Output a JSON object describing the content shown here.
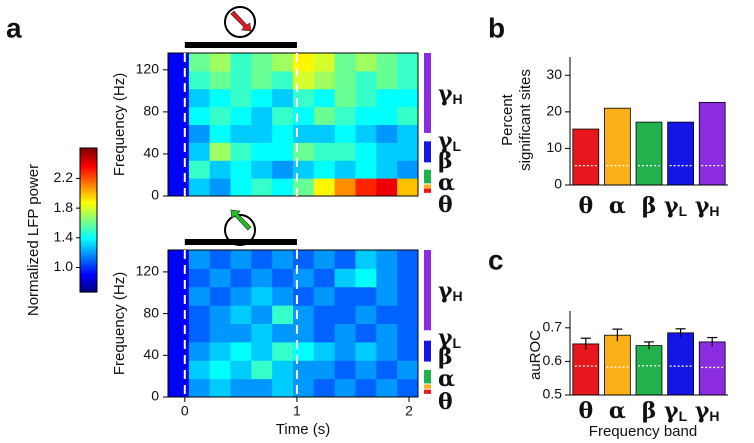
{
  "chart_data": [
    {
      "type": "heatmap",
      "label": "a",
      "ylabel": "Frequency (Hz)",
      "xlim": [
        -0.15,
        2.08
      ],
      "ylim": [
        0,
        136
      ],
      "yticks": [
        0,
        40,
        80,
        120
      ],
      "colormap": "jet",
      "stimulus": [
        0,
        1
      ],
      "stimulus_arrow_color": "#e8171d",
      "z": [
        [
          0.9,
          1.3,
          1.2,
          1.4,
          1.5,
          1.4,
          1.6,
          1.9,
          2.1,
          2.3,
          2.4,
          2.0
        ],
        [
          0.9,
          1.5,
          1.3,
          1.4,
          1.3,
          1.2,
          1.3,
          1.4,
          1.3,
          1.4,
          1.3,
          1.2
        ],
        [
          0.9,
          1.3,
          1.7,
          1.5,
          1.4,
          1.4,
          1.6,
          1.5,
          1.5,
          1.4,
          1.3,
          1.3
        ],
        [
          0.9,
          1.2,
          1.4,
          1.3,
          1.3,
          1.4,
          1.3,
          1.3,
          1.4,
          1.3,
          1.2,
          1.3
        ],
        [
          0.9,
          1.4,
          1.5,
          1.4,
          1.3,
          1.5,
          1.4,
          1.6,
          1.5,
          1.4,
          1.4,
          1.5
        ],
        [
          0.9,
          1.3,
          1.4,
          1.5,
          1.4,
          1.3,
          1.5,
          1.4,
          1.6,
          1.5,
          1.4,
          1.4
        ],
        [
          0.9,
          1.5,
          1.6,
          1.5,
          1.6,
          1.5,
          1.8,
          1.7,
          1.6,
          1.5,
          1.6,
          1.5
        ],
        [
          0.9,
          1.6,
          1.7,
          1.5,
          1.6,
          1.7,
          1.9,
          1.8,
          1.6,
          1.7,
          1.6,
          1.5
        ]
      ],
      "bands": [
        {
          "name": "γH",
          "range": [
            60,
            136
          ],
          "color": "#8b2be2"
        },
        {
          "name": "γL",
          "range": [
            32,
            52
          ],
          "color": "#1515e6"
        },
        {
          "name": "β",
          "range": [
            12,
            25
          ],
          "color": "#22b14c"
        },
        {
          "name": "α",
          "range": [
            7,
            11
          ],
          "color": "#fbb01a"
        },
        {
          "name": "θ",
          "range": [
            3,
            7
          ],
          "color": "#e8171d"
        }
      ]
    },
    {
      "type": "heatmap",
      "ylabel": "Frequency (Hz)",
      "xlabel": "Time (s)",
      "xlim": [
        -0.15,
        2.08
      ],
      "ylim": [
        0,
        141
      ],
      "yticks": [
        0,
        40,
        80,
        120
      ],
      "xticks": [
        0,
        1,
        2
      ],
      "colormap": "jet",
      "stimulus": [
        0,
        1
      ],
      "stimulus_arrow_color": "#22c01e",
      "z": [
        [
          0.9,
          1.2,
          1.3,
          1.2,
          1.2,
          1.3,
          1.2,
          1.1,
          1.2,
          1.1,
          1.2,
          1.1
        ],
        [
          0.9,
          1.3,
          1.4,
          1.3,
          1.5,
          1.3,
          1.2,
          1.2,
          1.1,
          1.2,
          1.1,
          1.2
        ],
        [
          0.9,
          1.2,
          1.3,
          1.4,
          1.3,
          1.5,
          1.4,
          1.3,
          1.2,
          1.3,
          1.2,
          1.1
        ],
        [
          0.9,
          1.1,
          1.2,
          1.2,
          1.3,
          1.2,
          1.2,
          1.1,
          1.2,
          1.1,
          1.2,
          1.1
        ],
        [
          0.9,
          1.1,
          1.2,
          1.3,
          1.2,
          1.5,
          1.2,
          1.1,
          1.1,
          1.2,
          1.1,
          1.1
        ],
        [
          0.9,
          1.2,
          1.1,
          1.2,
          1.3,
          1.2,
          1.1,
          1.2,
          1.1,
          1.1,
          1.2,
          1.1
        ],
        [
          0.9,
          1.1,
          1.2,
          1.1,
          1.2,
          1.1,
          1.2,
          1.1,
          1.3,
          1.4,
          1.2,
          1.1
        ],
        [
          0.9,
          1.2,
          1.1,
          1.2,
          1.1,
          1.2,
          1.1,
          1.2,
          1.1,
          1.3,
          1.2,
          1.1
        ]
      ],
      "bands": [
        {
          "name": "γH",
          "range": [
            64,
            141
          ],
          "color": "#8b2be2"
        },
        {
          "name": "γL",
          "range": [
            34,
            54
          ],
          "color": "#1515e6"
        },
        {
          "name": "β",
          "range": [
            13,
            26
          ],
          "color": "#22b14c"
        },
        {
          "name": "α",
          "range": [
            8,
            12
          ],
          "color": "#fbb01a"
        },
        {
          "name": "θ",
          "range": [
            3,
            7
          ],
          "color": "#e8171d"
        }
      ]
    },
    {
      "type": "colorbar",
      "label": "Normalized LFP power",
      "colormap": "jet",
      "ylim": [
        0.67,
        2.61
      ],
      "yticks": [
        {
          "value": 1.0,
          "label": "1.0"
        },
        1.4,
        1.8,
        2.2
      ]
    },
    {
      "type": "bar",
      "label": "b",
      "ylabel": [
        "Percent",
        "significant sites"
      ],
      "categories": [
        "θ",
        "α",
        "β",
        "γL",
        "γH"
      ],
      "colors": [
        "#e8171d",
        "#fbb01a",
        "#22b14c",
        "#1515e6",
        "#8b2be2"
      ],
      "values": [
        15.3,
        21,
        17.2,
        17.2,
        22.6
      ],
      "chance_values": [
        5.3,
        5.3,
        5.3,
        5.3,
        5.3
      ],
      "ylim": [
        0,
        35
      ],
      "yticks": [
        0,
        10,
        20,
        30
      ]
    },
    {
      "type": "bar",
      "label": "c",
      "ylabel": [
        "auROC"
      ],
      "xlabel": "Frequency band",
      "categories": [
        "θ",
        "α",
        "β",
        "γL",
        "γH"
      ],
      "colors": [
        "#e8171d",
        "#fbb01a",
        "#22b14c",
        "#1515e6",
        "#8b2be2"
      ],
      "values": [
        0.652,
        0.678,
        0.647,
        0.685,
        0.658
      ],
      "errors": [
        0.017,
        0.018,
        0.011,
        0.012,
        0.013
      ],
      "chance_values": [
        0.586,
        0.583,
        0.587,
        0.586,
        0.582
      ],
      "ylim": [
        0.5,
        0.75
      ],
      "yticks": [
        0.5,
        0.6,
        0.7
      ]
    }
  ]
}
